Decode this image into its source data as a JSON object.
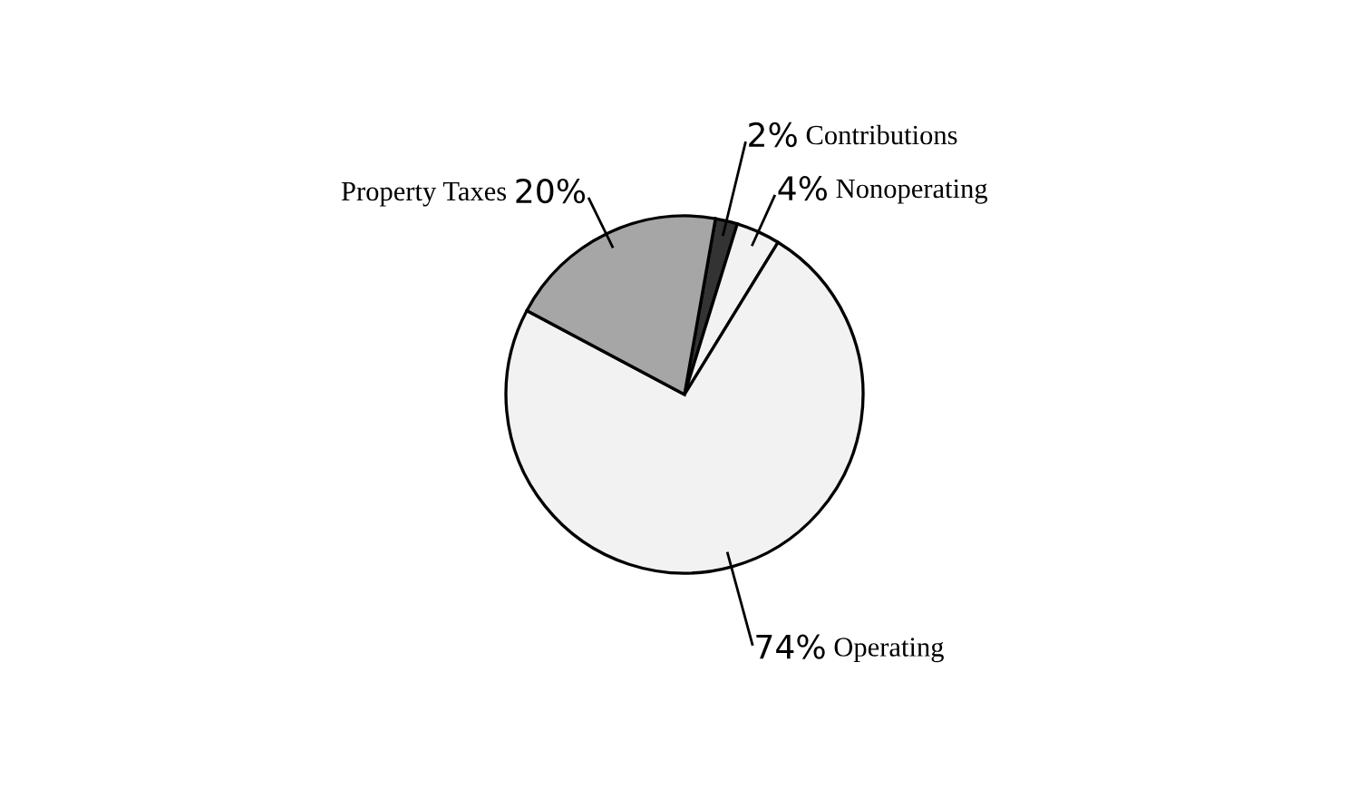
{
  "chart_data": {
    "type": "pie",
    "categories": [
      "Contributions",
      "Nonoperating",
      "Operating",
      "Property Taxes"
    ],
    "values": [
      2,
      4,
      74,
      20
    ],
    "colors": [
      "#333333",
      "#f2f2f2",
      "#f2f2f2",
      "#a6a6a6"
    ],
    "value_labels": [
      "2%",
      "4%",
      "74%",
      "20%"
    ],
    "legend": false
  }
}
